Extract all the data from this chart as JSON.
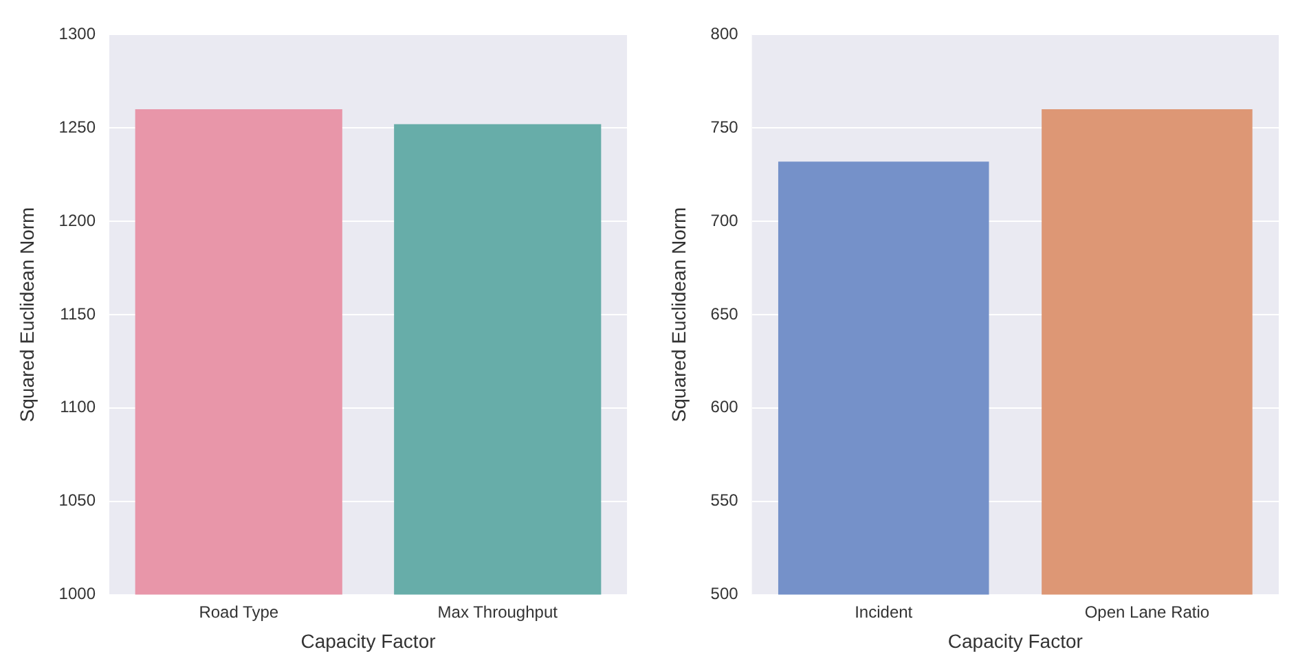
{
  "chart_data": [
    {
      "type": "bar",
      "categories": [
        "Road Type",
        "Max Throughput"
      ],
      "values": [
        1260,
        1252
      ],
      "colors": [
        "#e896a9",
        "#67ada9"
      ],
      "xlabel": "Capacity Factor",
      "ylabel": "Squared Euclidean Norm",
      "ylim": [
        1000,
        1300
      ],
      "yticks": [
        1000,
        1050,
        1100,
        1150,
        1200,
        1250,
        1300
      ],
      "grid": "y"
    },
    {
      "type": "bar",
      "categories": [
        "Incident",
        "Open Lane Ratio"
      ],
      "values": [
        732,
        760
      ],
      "colors": [
        "#7591c9",
        "#dd9775"
      ],
      "xlabel": "Capacity Factor",
      "ylabel": "Squared Euclidean Norm",
      "ylim": [
        500,
        800
      ],
      "yticks": [
        500,
        550,
        600,
        650,
        700,
        750,
        800
      ],
      "grid": "y"
    }
  ]
}
